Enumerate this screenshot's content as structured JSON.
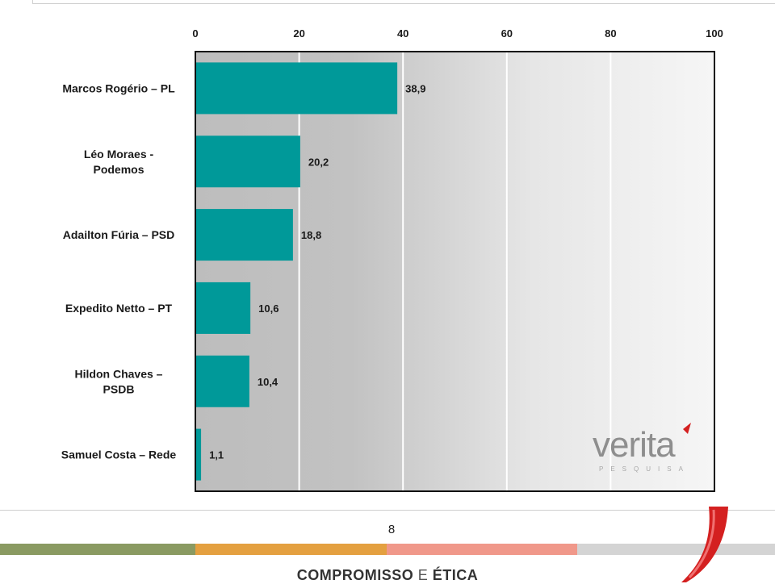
{
  "chart_data": {
    "type": "bar",
    "orientation": "horizontal",
    "categories": [
      [
        "Marcos Rogério – PL"
      ],
      [
        "Léo Moraes -",
        "Podemos"
      ],
      [
        "Adailton Fúria – PSD"
      ],
      [
        "Expedito Netto – PT"
      ],
      [
        "Hildon Chaves –",
        "PSDB"
      ],
      [
        "Samuel Costa – Rede"
      ]
    ],
    "values": [
      38.9,
      20.2,
      18.8,
      10.6,
      10.4,
      1.1
    ],
    "value_labels": [
      "38,9",
      "20,2",
      "18,8",
      "10,6",
      "10,4",
      "1,1"
    ],
    "xlim": [
      0,
      100
    ],
    "xticks": [
      0,
      20,
      40,
      60,
      80,
      100
    ],
    "axis_position": "top",
    "grid": true,
    "bar_color": "#009999",
    "plot_background": "gray-to-white gradient"
  },
  "footer": {
    "page_number": "8",
    "slogan_part1": "COMPROMISSO",
    "slogan_part2": "E",
    "slogan_part3": "ÉTICA",
    "stripe_colors": [
      "#8a9a62",
      "#e4a040",
      "#f0988a",
      "#d4d4d4"
    ]
  },
  "logo": {
    "name": "veritá",
    "tagline": "PESQUISA",
    "accent_color": "#d42020"
  }
}
